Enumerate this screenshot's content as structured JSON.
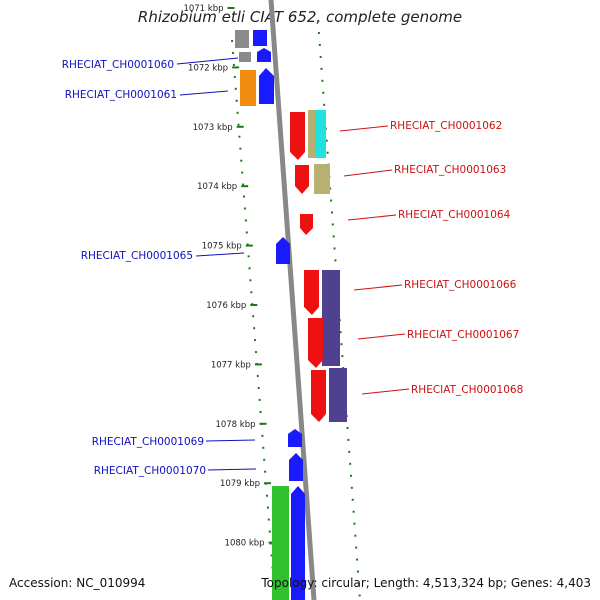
{
  "title": "Rhizobium etli CIAT 652, complete genome",
  "accession": "Accession: NC_010994",
  "summary": "Topology: circular; Length: 4,513,324 bp; Genes: 4,403",
  "ticks": [
    "1071 kbp",
    "1072 kbp",
    "1073 kbp",
    "1074 kbp",
    "1075 kbp",
    "1076 kbp",
    "1077 kbp",
    "1078 kbp",
    "1079 kbp",
    "1080 kbp"
  ],
  "genes_left": [
    "RHECIAT_CH0001060",
    "RHECIAT_CH0001061",
    "RHECIAT_CH0001065",
    "RHECIAT_CH0001069",
    "RHECIAT_CH0001070"
  ],
  "genes_right": [
    "RHECIAT_CH0001062",
    "RHECIAT_CH0001063",
    "RHECIAT_CH0001064",
    "RHECIAT_CH0001066",
    "RHECIAT_CH0001067",
    "RHECIAT_CH0001068"
  ],
  "colors": {
    "forward": "#1a1aff",
    "reverse": "#ee1111",
    "gray": "#8a8a8a",
    "orange": "#f08c10",
    "cyan": "#20e0e0",
    "khaki": "#b8b070",
    "purple": "#504090",
    "green": "#30c030",
    "tick": "#1a7a1a",
    "backbone": "#888888"
  }
}
